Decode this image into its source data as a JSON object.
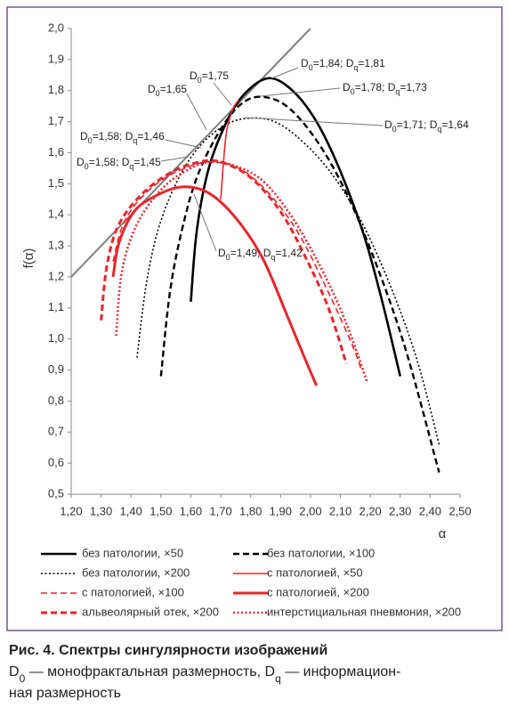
{
  "chart_data": {
    "type": "line",
    "xlabel": "α",
    "ylabel": "f(α)",
    "xlim": [
      1.2,
      2.5
    ],
    "ylim": [
      0.5,
      2.0
    ],
    "xticks": [
      {
        "value": 1.2,
        "label": "1,20"
      },
      {
        "value": 1.3,
        "label": "1,30"
      },
      {
        "value": 1.4,
        "label": "1,40"
      },
      {
        "value": 1.5,
        "label": "1,50"
      },
      {
        "value": 1.6,
        "label": "1,60"
      },
      {
        "value": 1.7,
        "label": "1,70"
      },
      {
        "value": 1.8,
        "label": "1,80"
      },
      {
        "value": 1.9,
        "label": "1,90"
      },
      {
        "value": 2.0,
        "label": "2,00"
      },
      {
        "value": 2.1,
        "label": "2,10"
      },
      {
        "value": 2.2,
        "label": "2,20"
      },
      {
        "value": 2.3,
        "label": "2,30"
      },
      {
        "value": 2.4,
        "label": "2,40"
      },
      {
        "value": 2.5,
        "label": "2,50"
      }
    ],
    "yticks": [
      {
        "value": 2.0,
        "label": "2,0"
      },
      {
        "value": 1.9,
        "label": "1,9"
      },
      {
        "value": 1.8,
        "label": "1,8"
      },
      {
        "value": 1.7,
        "label": "1,7"
      },
      {
        "value": 1.6,
        "label": "1,6"
      },
      {
        "value": 1.5,
        "label": "1,5"
      },
      {
        "value": 1.4,
        "label": "1,4"
      },
      {
        "value": 1.3,
        "label": "1,3"
      },
      {
        "value": 1.2,
        "label": "1,2"
      },
      {
        "value": 1.1,
        "label": "1,1"
      },
      {
        "value": 1.0,
        "label": "1,0"
      },
      {
        "value": 0.9,
        "label": "0,9"
      },
      {
        "value": 0.8,
        "label": "0,8"
      },
      {
        "value": 0.7,
        "label": "0,7"
      },
      {
        "value": 0.6,
        "label": "0,6"
      },
      {
        "value": 0.5,
        "label": "0,5"
      }
    ],
    "grid": false,
    "legend": "bottom",
    "reference_line": {
      "color": "#808080",
      "x": [
        1.2,
        2.0
      ],
      "values": [
        1.2,
        2.0
      ]
    },
    "series": [
      {
        "name": "без патологии, ×50",
        "color": "#000000",
        "dash": "solid",
        "width": 2.6,
        "x": [
          1.6,
          1.62,
          1.66,
          1.72,
          1.78,
          1.86,
          1.94,
          2.02,
          2.1,
          2.18,
          2.24,
          2.3
        ],
        "values": [
          1.12,
          1.35,
          1.55,
          1.7,
          1.79,
          1.84,
          1.8,
          1.7,
          1.54,
          1.33,
          1.12,
          0.88
        ]
      },
      {
        "name": "без патологии, ×100",
        "color": "#000000",
        "dash": "dashed",
        "width": 2.4,
        "x": [
          1.5,
          1.53,
          1.57,
          1.62,
          1.69,
          1.76,
          1.83,
          1.92,
          2.02,
          2.12,
          2.22,
          2.32,
          2.43
        ],
        "values": [
          0.88,
          1.15,
          1.35,
          1.52,
          1.66,
          1.75,
          1.78,
          1.75,
          1.64,
          1.47,
          1.24,
          0.96,
          0.57
        ]
      },
      {
        "name": "без патологии, ×200",
        "color": "#000000",
        "dash": "dotted",
        "width": 1.6,
        "x": [
          1.42,
          1.45,
          1.49,
          1.55,
          1.62,
          1.7,
          1.78,
          1.88,
          1.98,
          2.08,
          2.18,
          2.28,
          2.36,
          2.43
        ],
        "values": [
          0.94,
          1.17,
          1.35,
          1.5,
          1.61,
          1.68,
          1.71,
          1.7,
          1.63,
          1.52,
          1.36,
          1.14,
          0.92,
          0.66
        ]
      },
      {
        "name": "с патологией, ×50",
        "color": "#e8262a",
        "dash": "solid",
        "width": 1.6,
        "x": [
          1.7,
          1.71,
          1.72,
          1.74,
          1.76
        ],
        "values": [
          1.45,
          1.58,
          1.67,
          1.74,
          1.77
        ]
      },
      {
        "name": "с патологией, ×100",
        "color": "#e8262a",
        "dash": "dashed",
        "width": 1.6,
        "x": [
          1.34,
          1.37,
          1.42,
          1.5,
          1.58,
          1.66,
          1.76,
          1.86,
          1.96,
          2.06,
          2.14,
          2.17
        ],
        "values": [
          1.25,
          1.36,
          1.44,
          1.51,
          1.55,
          1.57,
          1.55,
          1.47,
          1.34,
          1.15,
          0.98,
          0.9
        ]
      },
      {
        "name": "с патологией, ×200",
        "color": "#e8262a",
        "dash": "solid",
        "width": 3,
        "x": [
          1.34,
          1.36,
          1.41,
          1.48,
          1.57,
          1.66,
          1.75,
          1.84,
          1.92,
          1.98,
          2.02
        ],
        "values": [
          1.2,
          1.31,
          1.41,
          1.46,
          1.49,
          1.47,
          1.39,
          1.26,
          1.08,
          0.94,
          0.85
        ]
      },
      {
        "name": "альвеолярный отек, ×200",
        "color": "#e8262a",
        "dash": "dashed",
        "width": 3,
        "x": [
          1.3,
          1.32,
          1.36,
          1.44,
          1.54,
          1.63,
          1.7,
          1.8,
          1.9,
          1.98,
          2.06,
          2.12
        ],
        "values": [
          1.06,
          1.24,
          1.37,
          1.47,
          1.54,
          1.57,
          1.57,
          1.52,
          1.41,
          1.27,
          1.1,
          0.92
        ]
      },
      {
        "name": "интерстициальная пневмония, ×200",
        "color": "#e8262a",
        "dash": "dotted",
        "width": 2.6,
        "x": [
          1.35,
          1.37,
          1.42,
          1.5,
          1.58,
          1.66,
          1.74,
          1.84,
          1.94,
          2.04,
          2.12,
          2.19
        ],
        "values": [
          1.01,
          1.22,
          1.37,
          1.48,
          1.54,
          1.57,
          1.56,
          1.51,
          1.39,
          1.22,
          1.05,
          0.86
        ]
      }
    ],
    "annotations": [
      "D0=1,84; Dq=1,81",
      "D0=1,78; Dq=1,73",
      "D0=1,75",
      "D0=1,65",
      "D0=1,71; Dq=1,64",
      "D0=1,58; Dq=1,46",
      "D0=1,58; Dq=1,45",
      "D0=1,49; Dq=1,42"
    ]
  },
  "caption": {
    "title": "Рис. 4. Спектры сингулярности изображений",
    "lines": [
      "D0 — монофрактальная размерность, Dq — информацион-",
      "ная размерность"
    ]
  }
}
